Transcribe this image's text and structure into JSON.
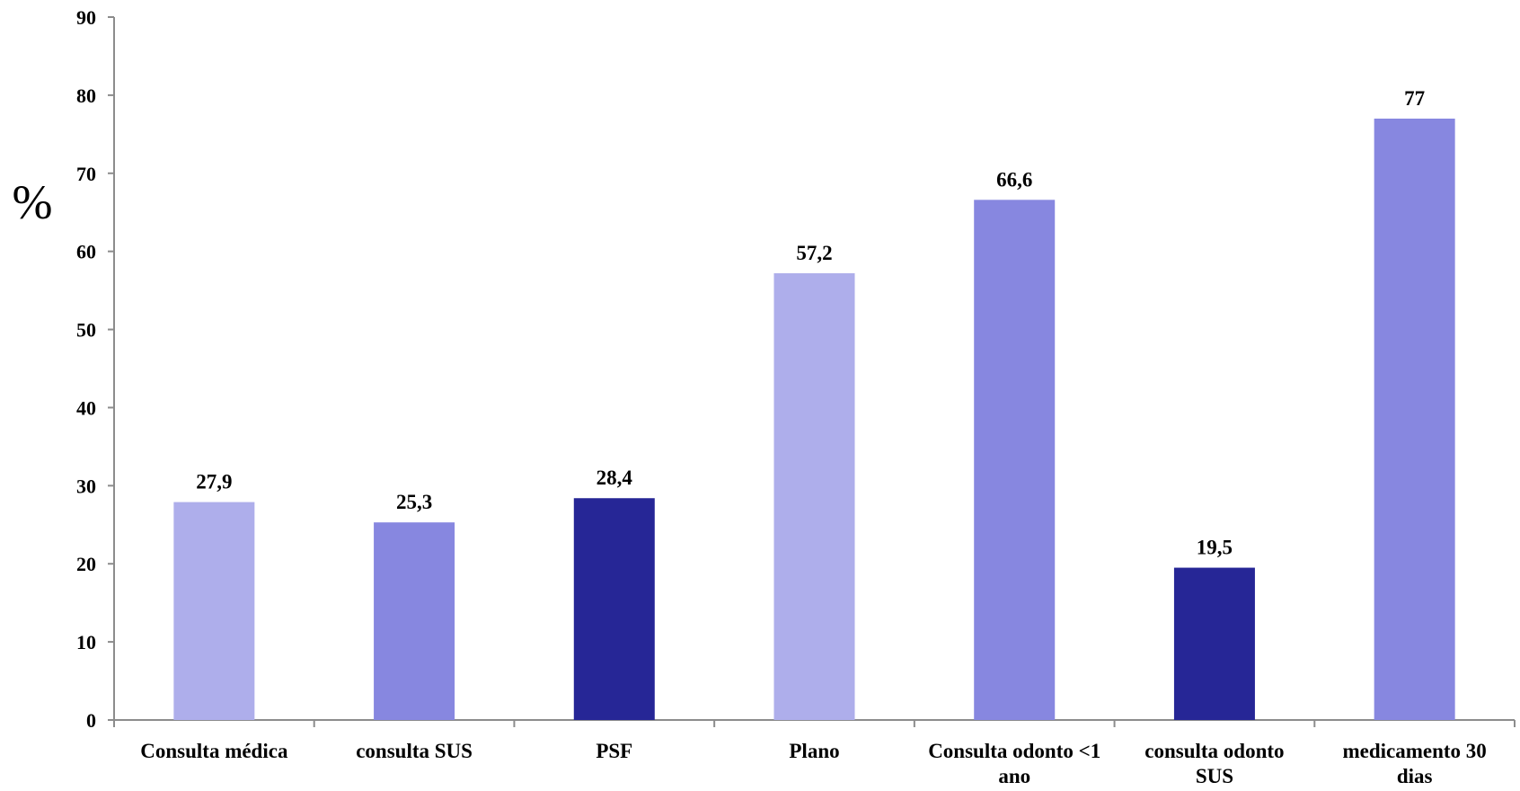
{
  "chart_data": {
    "type": "bar",
    "title": "",
    "xlabel": "",
    "ylabel": "%",
    "ylim": [
      0,
      90
    ],
    "yticks": [
      0,
      10,
      20,
      30,
      40,
      50,
      60,
      70,
      80,
      90
    ],
    "grid": false,
    "legend": "none",
    "categories": [
      [
        "Consulta médica"
      ],
      [
        "consulta SUS"
      ],
      [
        "PSF"
      ],
      [
        "Plano"
      ],
      [
        "Consulta odonto <1",
        "ano"
      ],
      [
        "consulta odonto",
        "SUS"
      ],
      [
        "medicamento 30",
        "dias"
      ]
    ],
    "values": [
      27.9,
      25.3,
      28.4,
      57.2,
      66.6,
      19.5,
      77
    ],
    "data_labels": [
      "27,9",
      "25,3",
      "28,4",
      "57,2",
      "66,6",
      "19,5",
      "77"
    ],
    "colors": [
      "#aeaeeb",
      "#8787e0",
      "#262696",
      "#aeaeeb",
      "#8787e0",
      "#262696",
      "#8787e0"
    ],
    "axis_color": "#8c8c8c"
  }
}
